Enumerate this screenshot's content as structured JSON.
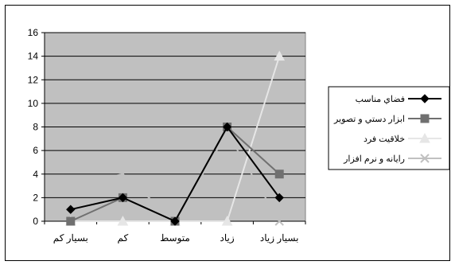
{
  "chart_data": {
    "type": "line",
    "categories": [
      "بسيار کم",
      "کم",
      "متوسط",
      "زياد",
      "بسيار زياد"
    ],
    "ylim": [
      0,
      16
    ],
    "y_ticks": [
      "0",
      "2",
      "4",
      "6",
      "8",
      "10",
      "12",
      "14",
      "16"
    ],
    "grid": true,
    "legend_position": "right",
    "series": [
      {
        "name": "فضاي مناسب",
        "values": [
          1,
          2,
          0,
          8,
          2
        ],
        "color": "#000000",
        "marker": "diamond"
      },
      {
        "name": "ابزار دستي و تصوير",
        "values": [
          0,
          2,
          0,
          8,
          4
        ],
        "color": "#707070",
        "marker": "square"
      },
      {
        "name": "خلاقيت فرد",
        "values": [
          0,
          0,
          0,
          0,
          14
        ],
        "color": "#e6e6e6",
        "marker": "triangle"
      },
      {
        "name": "رايانه و نرم افزار",
        "values": [
          3,
          4,
          0,
          7.5,
          0
        ],
        "color": "#c0c0c0",
        "marker": "x"
      }
    ],
    "plot_background": "#c0c0c0"
  }
}
